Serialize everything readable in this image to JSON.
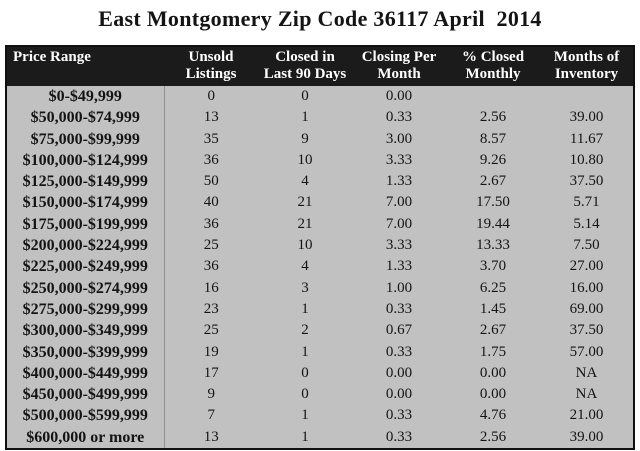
{
  "chart_data": {
    "type": "table",
    "title": "East Montgomery Zip Code 36117 April  2014",
    "columns": [
      {
        "id": "price-range",
        "label": "Price Range"
      },
      {
        "id": "unsold-listings",
        "label": "Unsold\nListings"
      },
      {
        "id": "closed-last-90-days",
        "label": "Closed in\nLast 90 Days"
      },
      {
        "id": "closing-per-month",
        "label": "Closing Per\nMonth"
      },
      {
        "id": "pct-closed-monthly",
        "label": "% Closed\nMonthly"
      },
      {
        "id": "months-of-inventory",
        "label": "Months of\nInventory"
      }
    ],
    "rows": [
      [
        "$0-$49,999",
        "0",
        "0",
        "0.00",
        "",
        ""
      ],
      [
        "$50,000-$74,999",
        "13",
        "1",
        "0.33",
        "2.56",
        "39.00"
      ],
      [
        "$75,000-$99,999",
        "35",
        "9",
        "3.00",
        "8.57",
        "11.67"
      ],
      [
        "$100,000-$124,999",
        "36",
        "10",
        "3.33",
        "9.26",
        "10.80"
      ],
      [
        "$125,000-$149,999",
        "50",
        "4",
        "1.33",
        "2.67",
        "37.50"
      ],
      [
        "$150,000-$174,999",
        "40",
        "21",
        "7.00",
        "17.50",
        "5.71"
      ],
      [
        "$175,000-$199,999",
        "36",
        "21",
        "7.00",
        "19.44",
        "5.14"
      ],
      [
        "$200,000-$224,999",
        "25",
        "10",
        "3.33",
        "13.33",
        "7.50"
      ],
      [
        "$225,000-$249,999",
        "36",
        "4",
        "1.33",
        "3.70",
        "27.00"
      ],
      [
        "$250,000-$274,999",
        "16",
        "3",
        "1.00",
        "6.25",
        "16.00"
      ],
      [
        "$275,000-$299,999",
        "23",
        "1",
        "0.33",
        "1.45",
        "69.00"
      ],
      [
        "$300,000-$349,999",
        "25",
        "2",
        "0.67",
        "2.67",
        "37.50"
      ],
      [
        "$350,000-$399,999",
        "19",
        "1",
        "0.33",
        "1.75",
        "57.00"
      ],
      [
        "$400,000-$449,999",
        "17",
        "0",
        "0.00",
        "0.00",
        "NA"
      ],
      [
        "$450,000-$499,999",
        "9",
        "0",
        "0.00",
        "0.00",
        "NA"
      ],
      [
        "$500,000-$599,999",
        "7",
        "1",
        "0.33",
        "4.76",
        "21.00"
      ],
      [
        "$600,000 or more",
        "13",
        "1",
        "0.33",
        "2.56",
        "39.00"
      ]
    ]
  },
  "colors": {
    "page_bg": "#ffffff",
    "header_bg": "#1b1b1b",
    "header_text": "#ffffff",
    "row_bg": "#c1c1c1",
    "table_border": "#101010",
    "column_divider": "#8f8f8f",
    "text": "#141414"
  }
}
